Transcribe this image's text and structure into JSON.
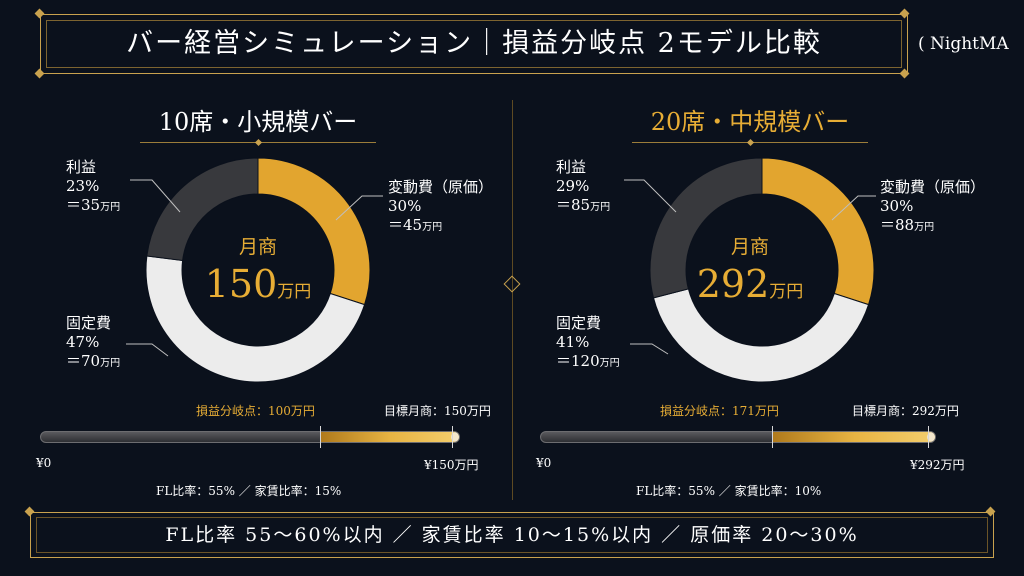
{
  "header": {
    "title": "バー経営シミュレーション｜損益分岐点 2モデル比較",
    "brand": "( NightMA"
  },
  "panels": [
    {
      "title": "10席・小規模バー",
      "center_label": "月商",
      "center_value": "150",
      "center_unit": "万円",
      "labels": {
        "profit": {
          "name": "利益",
          "pct": "23%",
          "amount": "＝35",
          "unit": "万円"
        },
        "variable": {
          "name": "変動費（原価）",
          "pct": "30%",
          "amount": "＝45",
          "unit": "万円"
        },
        "fixed": {
          "name": "固定費",
          "pct": "47%",
          "amount": "＝70",
          "unit": "万円"
        }
      },
      "breakeven_label": "損益分岐点：100万円",
      "target_label": "目標月商：150万円",
      "axis_start": "¥0",
      "axis_end": "¥150万円",
      "ratio_text": "FL比率：55% ／ 家賃比率：15%"
    },
    {
      "title": "20席・中規模バー",
      "center_label": "月商",
      "center_value": "292",
      "center_unit": "万円",
      "labels": {
        "profit": {
          "name": "利益",
          "pct": "29%",
          "amount": "＝85",
          "unit": "万円"
        },
        "variable": {
          "name": "変動費（原価）",
          "pct": "30%",
          "amount": "＝88",
          "unit": "万円"
        },
        "fixed": {
          "name": "固定費",
          "pct": "41%",
          "amount": "＝120",
          "unit": "万円"
        }
      },
      "breakeven_label": "損益分岐点：171万円",
      "target_label": "目標月商：292万円",
      "axis_start": "¥0",
      "axis_end": "¥292万円",
      "ratio_text": "FL比率：55% ／ 家賃比率：10%"
    }
  ],
  "footer": {
    "text": "FL比率 55〜60%以内 ／ 家賃比率 10〜15%以内 ／ 原価率 20〜30%"
  },
  "colors": {
    "background": "#0b111c",
    "gold": "#e7ad35",
    "variable_cost": "#e2a52f",
    "fixed_cost": "#ececec",
    "profit": "#38393d",
    "frame": "#c9a24e"
  },
  "chart_data": [
    {
      "type": "pie",
      "title": "10席・小規模バー",
      "categories": [
        "変動費（原価）",
        "固定費",
        "利益"
      ],
      "values": [
        30,
        47,
        23
      ],
      "amounts": [
        45,
        70,
        35
      ],
      "total": 150,
      "bar": {
        "min": 0,
        "max": 150,
        "breakeven": 100,
        "target": 150
      }
    },
    {
      "type": "pie",
      "title": "20席・中規模バー",
      "categories": [
        "変動費（原価）",
        "固定費",
        "利益"
      ],
      "values": [
        30,
        41,
        29
      ],
      "amounts": [
        88,
        120,
        85
      ],
      "total": 292,
      "bar": {
        "min": 0,
        "max": 292,
        "breakeven": 171,
        "target": 292
      }
    }
  ]
}
